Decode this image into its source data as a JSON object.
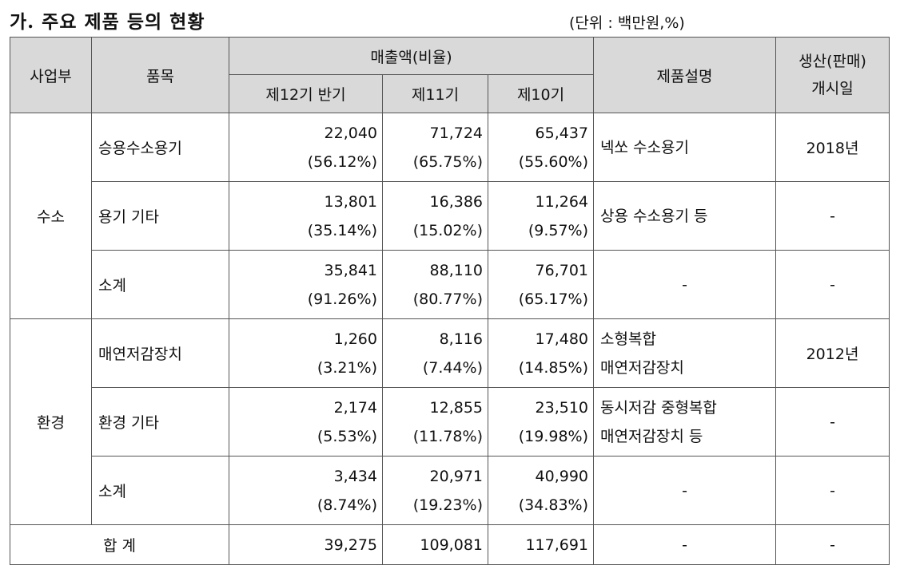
{
  "title": "가. 주요 제품 등의 현황",
  "unit": "(단위 : 백만원,%)",
  "headers": {
    "division": "사업부",
    "item": "품목",
    "sales": "매출액(비율)",
    "p12": "제12기 반기",
    "p11": "제11기",
    "p10": "제10기",
    "desc": "제품설명",
    "start_line1": "생산(판매)",
    "start_line2": "개시일"
  },
  "groups": [
    {
      "division": "수소",
      "rows": [
        {
          "item": "승용수소용기",
          "p12": "22,040",
          "p12pct": "(56.12%)",
          "p11": "71,724",
          "p11pct": "(65.75%)",
          "p10": "65,437",
          "p10pct": "(55.60%)",
          "desc1": "넥쏘 수소용기",
          "desc2": "",
          "start": "2018년"
        },
        {
          "item": "용기 기타",
          "p12": "13,801",
          "p12pct": "(35.14%)",
          "p11": "16,386",
          "p11pct": "(15.02%)",
          "p10": "11,264",
          "p10pct": "(9.57%)",
          "desc1": "상용 수소용기 등",
          "desc2": "",
          "start": "-"
        },
        {
          "item": "소계",
          "p12": "35,841",
          "p12pct": "(91.26%)",
          "p11": "88,110",
          "p11pct": "(80.77%)",
          "p10": "76,701",
          "p10pct": "(65.17%)",
          "desc1": "-",
          "desc2": "",
          "start": "-"
        }
      ]
    },
    {
      "division": "환경",
      "rows": [
        {
          "item": "매연저감장치",
          "p12": "1,260",
          "p12pct": "(3.21%)",
          "p11": "8,116",
          "p11pct": "(7.44%)",
          "p10": "17,480",
          "p10pct": "(14.85%)",
          "desc1": "소형복합",
          "desc2": "매연저감장치",
          "start": "2012년"
        },
        {
          "item": "환경 기타",
          "p12": "2,174",
          "p12pct": "(5.53%)",
          "p11": "12,855",
          "p11pct": "(11.78%)",
          "p10": "23,510",
          "p10pct": "(19.98%)",
          "desc1": "동시저감 중형복합",
          "desc2": "매연저감장치 등",
          "start": "-"
        },
        {
          "item": "소계",
          "p12": "3,434",
          "p12pct": "(8.74%)",
          "p11": "20,971",
          "p11pct": "(19.23%)",
          "p10": "40,990",
          "p10pct": "(34.83%)",
          "desc1": "-",
          "desc2": "",
          "start": "-"
        }
      ]
    }
  ],
  "total": {
    "label": "합 계",
    "p12": "39,275",
    "p11": "109,081",
    "p10": "117,691",
    "desc": "-",
    "start": "-"
  }
}
